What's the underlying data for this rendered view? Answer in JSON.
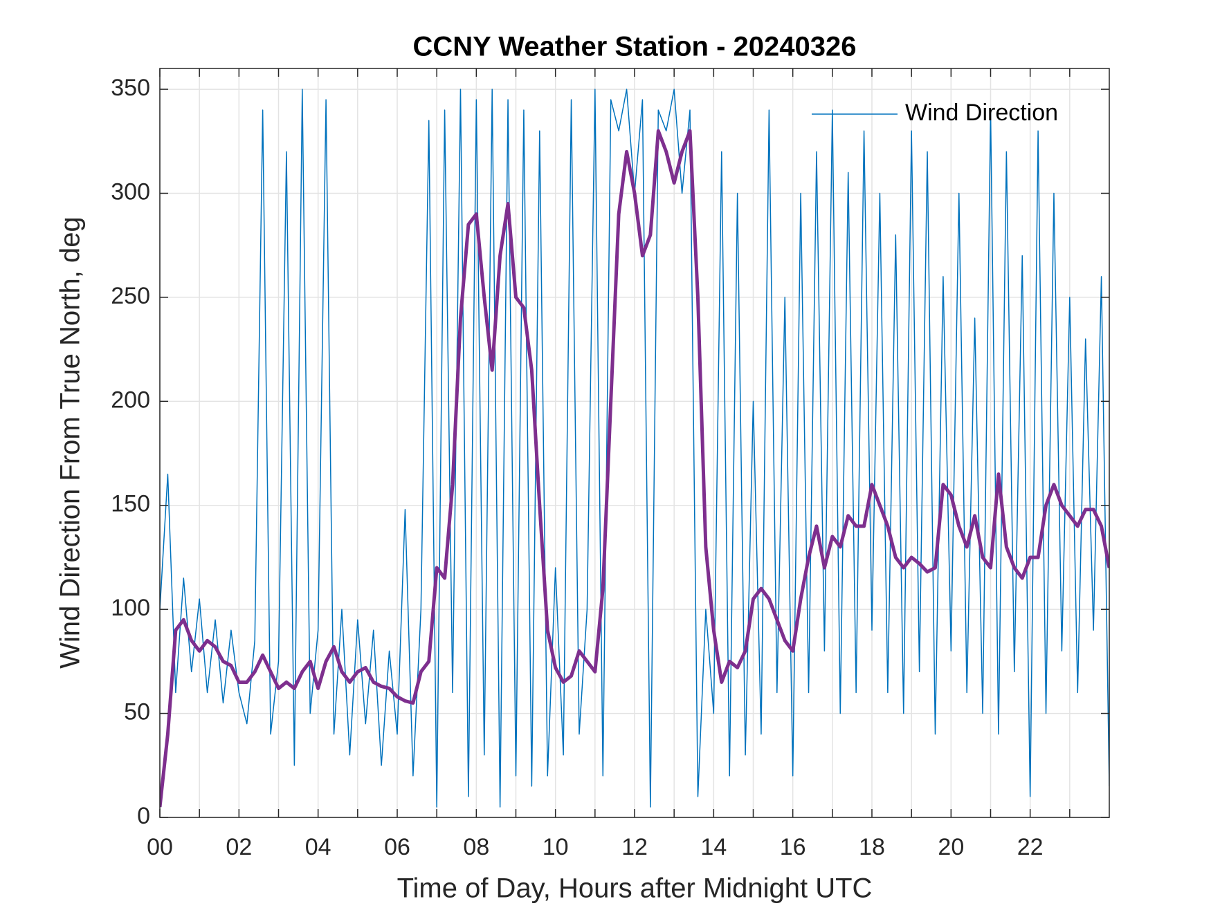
{
  "chart_data": {
    "type": "line",
    "title": "CCNY Weather Station - 20240326",
    "xlabel": "Time of Day, Hours after Midnight UTC",
    "ylabel": "Wind Direction From True North, deg",
    "xlim": [
      0,
      24
    ],
    "ylim": [
      0,
      360
    ],
    "xticks": [
      {
        "value": 0,
        "label": "00"
      },
      {
        "value": 2,
        "label": "02"
      },
      {
        "value": 4,
        "label": "04"
      },
      {
        "value": 6,
        "label": "06"
      },
      {
        "value": 8,
        "label": "08"
      },
      10,
      12,
      14,
      16,
      18,
      20,
      22
    ],
    "xminorticks": [
      1,
      3,
      5,
      7,
      9,
      11,
      13,
      15,
      17,
      19,
      21,
      23
    ],
    "yticks": [
      0,
      50,
      100,
      150,
      200,
      250,
      300,
      350
    ],
    "grid": true,
    "legend": "upper right",
    "x": [
      0,
      0.2,
      0.4,
      0.6,
      0.8,
      1,
      1.2,
      1.4,
      1.6,
      1.8,
      2,
      2.2,
      2.4,
      2.6,
      2.8,
      3,
      3.2,
      3.4,
      3.6,
      3.8,
      4,
      4.2,
      4.4,
      4.6,
      4.8,
      5,
      5.2,
      5.4,
      5.6,
      5.8,
      6,
      6.2,
      6.4,
      6.6,
      6.8,
      7,
      7.2,
      7.4,
      7.6,
      7.8,
      8,
      8.2,
      8.4,
      8.6,
      8.8,
      9,
      9.2,
      9.4,
      9.6,
      9.8,
      10,
      10.2,
      10.4,
      10.6,
      10.8,
      11,
      11.2,
      11.4,
      11.6,
      11.8,
      12,
      12.2,
      12.4,
      12.6,
      12.8,
      13,
      13.2,
      13.4,
      13.6,
      13.8,
      14,
      14.2,
      14.4,
      14.6,
      14.8,
      15,
      15.2,
      15.4,
      15.6,
      15.8,
      16,
      16.2,
      16.4,
      16.6,
      16.8,
      17,
      17.2,
      17.4,
      17.6,
      17.8,
      18,
      18.2,
      18.4,
      18.6,
      18.8,
      19,
      19.2,
      19.4,
      19.6,
      19.8,
      20,
      20.2,
      20.4,
      20.6,
      20.8,
      21,
      21.2,
      21.4,
      21.6,
      21.8,
      22,
      22.2,
      22.4,
      22.6,
      22.8,
      23,
      23.2,
      23.4,
      23.6,
      23.8,
      24
    ],
    "series": [
      {
        "name": "Wind Direction",
        "color": "#0072BD",
        "width": 1.5,
        "values": [
          100,
          165,
          60,
          115,
          70,
          105,
          60,
          95,
          55,
          90,
          60,
          45,
          85,
          340,
          40,
          75,
          320,
          25,
          350,
          50,
          90,
          345,
          40,
          100,
          30,
          95,
          45,
          90,
          25,
          80,
          40,
          148,
          20,
          100,
          335,
          5,
          340,
          60,
          350,
          10,
          345,
          30,
          350,
          5,
          345,
          20,
          340,
          15,
          330,
          20,
          120,
          30,
          345,
          40,
          100,
          350,
          20,
          345,
          330,
          350,
          300,
          345,
          5,
          340,
          330,
          350,
          300,
          340,
          10,
          100,
          50,
          320,
          20,
          300,
          30,
          200,
          40,
          340,
          60,
          250,
          20,
          300,
          60,
          320,
          80,
          340,
          50,
          310,
          60,
          330,
          90,
          300,
          60,
          280,
          50,
          330,
          70,
          320,
          40,
          260,
          80,
          300,
          60,
          240,
          50,
          340,
          40,
          320,
          70,
          270,
          10,
          330,
          50,
          300,
          80,
          250,
          60,
          230,
          90,
          260,
          15
        ]
      },
      {
        "color": "#7E2F8E",
        "width": 5,
        "values": [
          5,
          40,
          90,
          95,
          85,
          80,
          85,
          82,
          75,
          73,
          65,
          65,
          70,
          78,
          70,
          62,
          65,
          62,
          70,
          75,
          62,
          75,
          82,
          70,
          65,
          70,
          72,
          65,
          63,
          62,
          58,
          56,
          55,
          70,
          75,
          120,
          115,
          160,
          240,
          285,
          290,
          250,
          215,
          270,
          295,
          250,
          245,
          215,
          150,
          90,
          72,
          65,
          68,
          80,
          75,
          70,
          110,
          200,
          290,
          320,
          300,
          270,
          280,
          330,
          320,
          305,
          320,
          330,
          250,
          130,
          90,
          65,
          75,
          72,
          80,
          105,
          110,
          105,
          95,
          85,
          80,
          105,
          125,
          140,
          120,
          135,
          130,
          145,
          140,
          140,
          160,
          150,
          140,
          125,
          120,
          125,
          122,
          118,
          120,
          160,
          155,
          140,
          130,
          145,
          125,
          120,
          165,
          130,
          120,
          115,
          125,
          125,
          150,
          160,
          150,
          145,
          140,
          148,
          148,
          140,
          120
        ]
      }
    ]
  }
}
